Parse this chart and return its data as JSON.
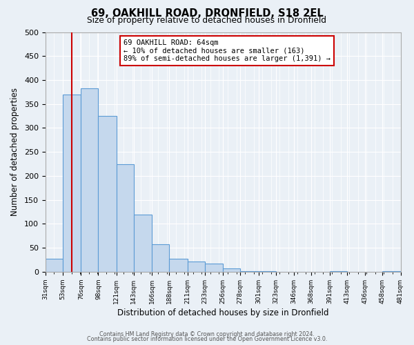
{
  "title1": "69, OAKHILL ROAD, DRONFIELD, S18 2EL",
  "title2": "Size of property relative to detached houses in Dronfield",
  "xlabel": "Distribution of detached houses by size in Dronfield",
  "ylabel": "Number of detached properties",
  "bar_edges": [
    31,
    53,
    76,
    98,
    121,
    143,
    166,
    188,
    211,
    233,
    256,
    278,
    301,
    323,
    346,
    368,
    391,
    413,
    436,
    458,
    481
  ],
  "bar_heights": [
    28,
    370,
    383,
    325,
    225,
    120,
    58,
    28,
    22,
    17,
    7,
    1,
    1,
    0,
    0,
    0,
    2,
    0,
    0,
    1
  ],
  "bar_color": "#c5d8ed",
  "bar_edge_color": "#5b9bd5",
  "ylim": [
    0,
    500
  ],
  "yticks": [
    0,
    50,
    100,
    150,
    200,
    250,
    300,
    350,
    400,
    450,
    500
  ],
  "vline_x": 64,
  "vline_color": "#cc0000",
  "annotation_title": "69 OAKHILL ROAD: 64sqm",
  "annotation_line1": "← 10% of detached houses are smaller (163)",
  "annotation_line2": "89% of semi-detached houses are larger (1,391) →",
  "annotation_box_color": "#cc0000",
  "footer1": "Contains HM Land Registry data © Crown copyright and database right 2024.",
  "footer2": "Contains public sector information licensed under the Open Government Licence v3.0.",
  "bg_color": "#eaf0f6",
  "plot_bg_color": "#eaf0f6",
  "grid_color": "#ffffff"
}
